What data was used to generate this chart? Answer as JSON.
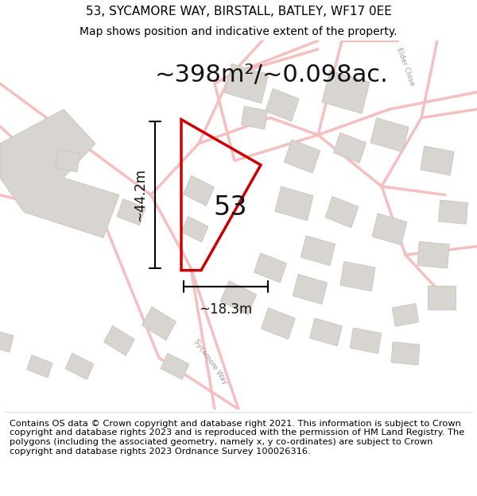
{
  "title": "53, SYCAMORE WAY, BIRSTALL, BATLEY, WF17 0EE",
  "subtitle": "Map shows position and indicative extent of the property.",
  "area_text": "~398m²/~0.098ac.",
  "label_53": "53",
  "dim_height": "~44.2m",
  "dim_width": "~18.3m",
  "footer": "Contains OS data © Crown copyright and database right 2021. This information is subject to Crown copyright and database rights 2023 and is reproduced with the permission of HM Land Registry. The polygons (including the associated geometry, namely x, y co-ordinates) are subject to Crown copyright and database rights 2023 Ordnance Survey 100026316.",
  "bg_color": "#ffffff",
  "map_bg": "#f8f7f5",
  "road_color": "#f5bfbf",
  "building_face": "#d8d4d0",
  "building_edge": "#c8c4c0",
  "plot_color": "#cc0000",
  "title_fontsize": 11,
  "subtitle_fontsize": 10,
  "area_fontsize": 22,
  "label_fontsize": 24,
  "dim_fontsize": 12,
  "footer_fontsize": 8.2,
  "road_lw": 2.5,
  "plot_lw": 2.5,
  "dim_lw": 1.5
}
